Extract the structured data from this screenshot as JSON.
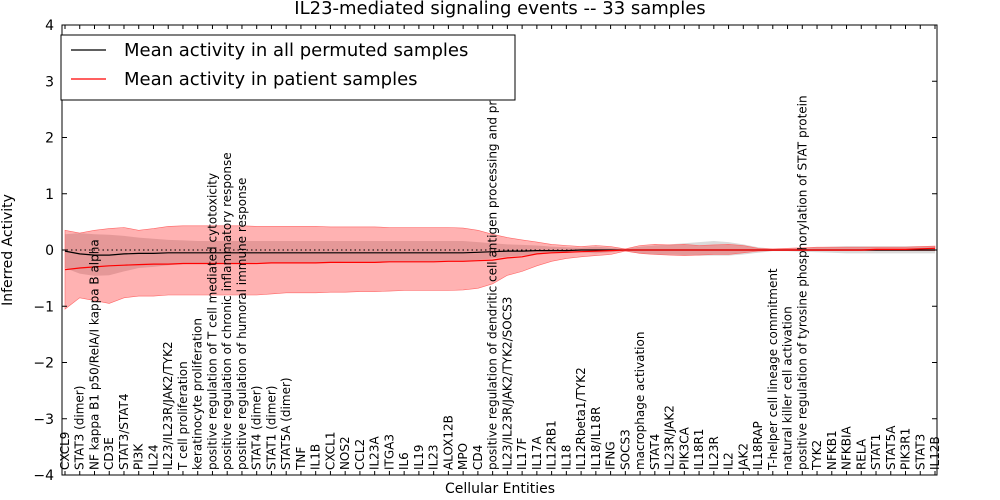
{
  "chart_data": {
    "type": "line",
    "title": "IL23-mediated signaling events -- 33 samples",
    "xlabel": "Cellular Entities",
    "ylabel": "Inferred Activity",
    "ylim": [
      -4,
      4
    ],
    "yticks": [
      -4,
      -3,
      -2,
      -1,
      0,
      1,
      2,
      3,
      4
    ],
    "grid": false,
    "legend_position": "top-left",
    "legend": [
      {
        "label": "Mean activity in all permuted samples",
        "color": "#000000"
      },
      {
        "label": "Mean activity in patient samples",
        "color": "#ff0000"
      }
    ],
    "categories": [
      "CXCL9",
      "STAT3 (dimer)",
      "NF kappa B1 p50/RelA/I kappa B alpha",
      "CD3E",
      "STAT3/STAT4",
      "PI3K",
      "IL24",
      "IL23/IL23R/JAK2/TYK2",
      "T cell proliferation",
      "keratinocyte proliferation",
      "positive regulation of T cell mediated cytotoxicity",
      "positive regulation of chronic inflammatory response",
      "positive regulation of humoral immune response",
      "STAT4 (dimer)",
      "STAT1 (dimer)",
      "STAT5A (dimer)",
      "TNF",
      "IL1B",
      "CXCL1",
      "NOS2",
      "CCL2",
      "IL23A",
      "ITGA3",
      "IL6",
      "IL19",
      "IL23",
      "ALOX12B",
      "MPO",
      "CD4",
      "positive regulation of dendritic cell antigen processing and presentation",
      "IL23/IL23R/JAK2/TYK2/SOCS3",
      "IL17F",
      "IL17A",
      "IL12RB1",
      "IL18",
      "IL12Rbeta1/TYK2",
      "IL18/IL18R",
      "IFNG",
      "SOCS3",
      "macrophage activation",
      "STAT4",
      "IL23R/JAK2",
      "PIK3CA",
      "IL18R1",
      "IL23R",
      "IL2",
      "JAK2",
      "IL18RAP",
      "T-helper cell lineage commitment",
      "natural killer cell activation",
      "positive regulation of tyrosine phosphorylation of STAT protein",
      "TYK2",
      "NFKB1",
      "NFKBIA",
      "RELA",
      "STAT1",
      "STAT5A",
      "PIK3R1",
      "STAT3",
      "IL12B"
    ],
    "series": [
      {
        "name": "Mean activity in all permuted samples",
        "color": "#000000",
        "values": [
          -0.02,
          -0.07,
          -0.09,
          -0.09,
          -0.07,
          -0.06,
          -0.06,
          -0.05,
          -0.05,
          -0.05,
          -0.05,
          -0.05,
          -0.05,
          -0.05,
          -0.05,
          -0.05,
          -0.05,
          -0.05,
          -0.05,
          -0.05,
          -0.05,
          -0.05,
          -0.05,
          -0.05,
          -0.05,
          -0.05,
          -0.05,
          -0.05,
          -0.04,
          -0.03,
          -0.02,
          -0.02,
          -0.01,
          -0.01,
          -0.01,
          0.0,
          0.0,
          0.0,
          0.0,
          0.0,
          0.0,
          0.0,
          0.0,
          0.0,
          0.0,
          0.0,
          0.0,
          0.0,
          0.0,
          0.0,
          0.0,
          0.0,
          0.0,
          0.0,
          0.0,
          0.0,
          0.0,
          0.0,
          0.0,
          0.0
        ],
        "lower": [
          -0.32,
          -0.42,
          -0.46,
          -0.45,
          -0.38,
          -0.32,
          -0.3,
          -0.27,
          -0.25,
          -0.24,
          -0.23,
          -0.23,
          -0.23,
          -0.22,
          -0.22,
          -0.22,
          -0.22,
          -0.22,
          -0.22,
          -0.21,
          -0.21,
          -0.21,
          -0.21,
          -0.21,
          -0.21,
          -0.21,
          -0.2,
          -0.2,
          -0.18,
          -0.15,
          -0.12,
          -0.1,
          -0.08,
          -0.06,
          -0.05,
          -0.04,
          -0.06,
          -0.04,
          -0.02,
          -0.06,
          -0.08,
          -0.08,
          -0.09,
          -0.1,
          -0.1,
          -0.1,
          -0.08,
          -0.05,
          -0.02,
          -0.02,
          -0.03,
          -0.04,
          -0.05,
          -0.06,
          -0.06,
          -0.06,
          -0.06,
          -0.06,
          -0.06,
          -0.06
        ],
        "upper": [
          0.28,
          0.3,
          0.28,
          0.27,
          0.25,
          0.22,
          0.2,
          0.18,
          0.17,
          0.16,
          0.16,
          0.16,
          0.16,
          0.16,
          0.16,
          0.16,
          0.16,
          0.16,
          0.16,
          0.16,
          0.16,
          0.16,
          0.16,
          0.16,
          0.16,
          0.16,
          0.16,
          0.16,
          0.14,
          0.12,
          0.1,
          0.09,
          0.08,
          0.06,
          0.05,
          0.04,
          0.06,
          0.04,
          0.02,
          0.06,
          0.08,
          0.1,
          0.12,
          0.14,
          0.16,
          0.14,
          0.1,
          0.05,
          0.02,
          0.02,
          0.03,
          0.05,
          0.06,
          0.07,
          0.07,
          0.07,
          0.07,
          0.07,
          0.07,
          0.07
        ]
      },
      {
        "name": "Mean activity in patient samples",
        "color": "#ff0000",
        "values": [
          -0.35,
          -0.32,
          -0.3,
          -0.28,
          -0.27,
          -0.26,
          -0.25,
          -0.25,
          -0.24,
          -0.24,
          -0.24,
          -0.24,
          -0.24,
          -0.24,
          -0.23,
          -0.23,
          -0.23,
          -0.23,
          -0.22,
          -0.22,
          -0.22,
          -0.22,
          -0.21,
          -0.21,
          -0.21,
          -0.21,
          -0.2,
          -0.2,
          -0.19,
          -0.18,
          -0.14,
          -0.12,
          -0.07,
          -0.05,
          -0.04,
          -0.03,
          -0.02,
          -0.01,
          0.0,
          0.0,
          0.0,
          0.0,
          0.0,
          0.0,
          0.0,
          0.0,
          0.0,
          0.0,
          0.0,
          0.0,
          0.0,
          0.0,
          0.0,
          0.0,
          0.0,
          0.01,
          0.01,
          0.01,
          0.02,
          0.03
        ],
        "lower": [
          -1.05,
          -0.85,
          -0.9,
          -0.95,
          -0.85,
          -0.82,
          -0.82,
          -0.8,
          -0.8,
          -0.8,
          -0.8,
          -0.8,
          -0.8,
          -0.8,
          -0.78,
          -0.76,
          -0.76,
          -0.76,
          -0.75,
          -0.75,
          -0.74,
          -0.74,
          -0.73,
          -0.72,
          -0.72,
          -0.72,
          -0.72,
          -0.71,
          -0.68,
          -0.6,
          -0.45,
          -0.38,
          -0.28,
          -0.2,
          -0.15,
          -0.12,
          -0.1,
          -0.08,
          -0.02,
          -0.06,
          -0.08,
          -0.09,
          -0.1,
          -0.09,
          -0.08,
          -0.08,
          -0.05,
          -0.02,
          -0.01,
          -0.01,
          -0.01,
          -0.01,
          -0.01,
          -0.01,
          -0.01,
          -0.01,
          -0.01,
          -0.01,
          -0.01,
          -0.01
        ],
        "upper": [
          0.35,
          0.3,
          0.35,
          0.38,
          0.4,
          0.35,
          0.38,
          0.42,
          0.43,
          0.43,
          0.43,
          0.43,
          0.43,
          0.42,
          0.42,
          0.42,
          0.42,
          0.42,
          0.41,
          0.41,
          0.41,
          0.41,
          0.4,
          0.4,
          0.4,
          0.4,
          0.4,
          0.39,
          0.35,
          0.28,
          0.22,
          0.18,
          0.14,
          0.1,
          0.08,
          0.06,
          0.08,
          0.06,
          0.02,
          0.08,
          0.1,
          0.09,
          0.1,
          0.08,
          0.09,
          0.1,
          0.08,
          0.03,
          0.02,
          0.03,
          0.04,
          0.05,
          0.05,
          0.05,
          0.05,
          0.05,
          0.05,
          0.05,
          0.06,
          0.07
        ]
      }
    ]
  }
}
